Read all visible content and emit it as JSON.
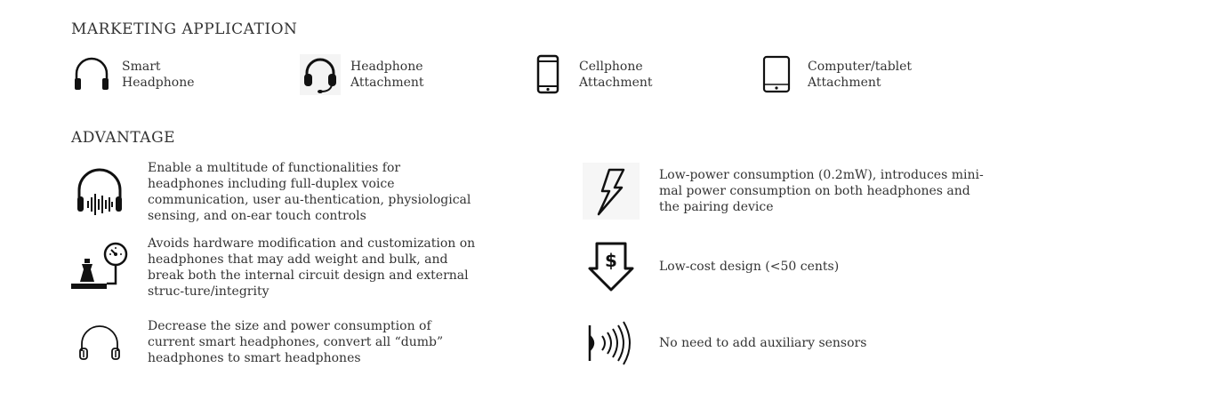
{
  "marketing": {
    "title": "MARKETING APPLICATION",
    "items": [
      {
        "line1": "Smart",
        "line2": "Headphone",
        "icon": "headphone-icon"
      },
      {
        "line1": "Headphone",
        "line2": "Attachment",
        "icon": "headset-icon"
      },
      {
        "line1": "Cellphone",
        "line2": "Attachment",
        "icon": "cellphone-icon"
      },
      {
        "line1": "Computer/tablet",
        "line2": "Attachment",
        "icon": "tablet-icon"
      }
    ]
  },
  "advantage": {
    "title": "ADVANTAGE",
    "left": [
      {
        "text": "Enable a multitude of functionalities for headphones including full-duplex voice communication, user au-thentication, physiological sensing, and on-ear touch controls",
        "icon": "headphone-soundwave-icon"
      },
      {
        "text": "Avoids hardware modification and customization on headphones that may add weight and bulk, and break both the internal circuit design and external struc-ture/integrity",
        "icon": "weight-scale-icon"
      },
      {
        "text": "Decrease the size and power consumption of current smart headphones, convert all “dumb” headphones to smart headphones",
        "icon": "headphone-outline-icon"
      }
    ],
    "right": [
      {
        "text": "Low-power consumption (0.2mW), introduces mini-mal power consumption on both headphones and the pairing device",
        "icon": "lightning-icon"
      },
      {
        "text": "Low-cost design (<50 cents)",
        "icon": "dollar-arrow-icon"
      },
      {
        "text": "No need to add auxiliary sensors",
        "icon": "sound-waves-icon"
      }
    ]
  }
}
